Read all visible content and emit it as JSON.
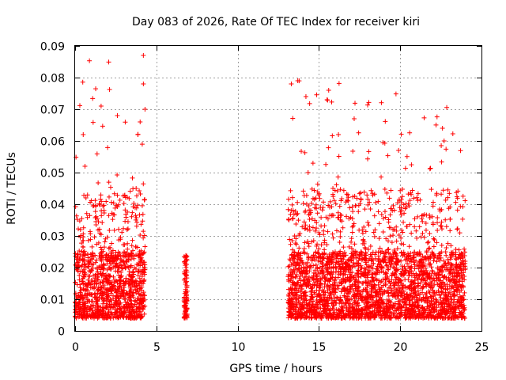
{
  "chart_data": {
    "type": "scatter",
    "title": "Day 083 of 2026, Rate Of TEC Index for receiver kiri",
    "xlabel": "GPS time / hours",
    "ylabel": "ROTI / TECUs",
    "xlim": [
      0,
      25
    ],
    "ylim": [
      0,
      0.09
    ],
    "x_ticks": [
      "0",
      "5",
      "10",
      "15",
      "20",
      "25"
    ],
    "y_ticks": [
      "0",
      "0.01",
      "0.02",
      "0.03",
      "0.04",
      "0.05",
      "0.06",
      "0.07",
      "0.08",
      "0.09"
    ],
    "grid": true,
    "marker": "plus",
    "color": "#ff0000",
    "series": [
      {
        "data_segments": [
          {
            "x_range": [
              0.0,
              4.3
            ],
            "typical_range": [
              0.004,
              0.025
            ],
            "max_value": 0.087
          },
          {
            "x_range": [
              6.7,
              6.9
            ],
            "typical_range": [
              0.004,
              0.022
            ],
            "max_value": 0.024
          },
          {
            "x_range": [
              13.1,
              24.0
            ],
            "typical_range": [
              0.004,
              0.025
            ],
            "max_value": 0.079
          }
        ],
        "notable_points": [
          {
            "x": 4.2,
            "y": 0.087
          },
          {
            "x": 4.2,
            "y": 0.078
          },
          {
            "x": 4.3,
            "y": 0.07
          },
          {
            "x": 1.6,
            "y": 0.071
          },
          {
            "x": 2.6,
            "y": 0.068
          },
          {
            "x": 4.0,
            "y": 0.066
          },
          {
            "x": 0.5,
            "y": 0.062
          },
          {
            "x": 13.3,
            "y": 0.078
          },
          {
            "x": 13.7,
            "y": 0.079
          },
          {
            "x": 14.2,
            "y": 0.074
          },
          {
            "x": 15.6,
            "y": 0.076
          },
          {
            "x": 15.5,
            "y": 0.073
          },
          {
            "x": 16.2,
            "y": 0.062
          },
          {
            "x": 22.6,
            "y": 0.064
          },
          {
            "x": 22.7,
            "y": 0.06
          },
          {
            "x": 19.9,
            "y": 0.057
          }
        ]
      }
    ]
  }
}
